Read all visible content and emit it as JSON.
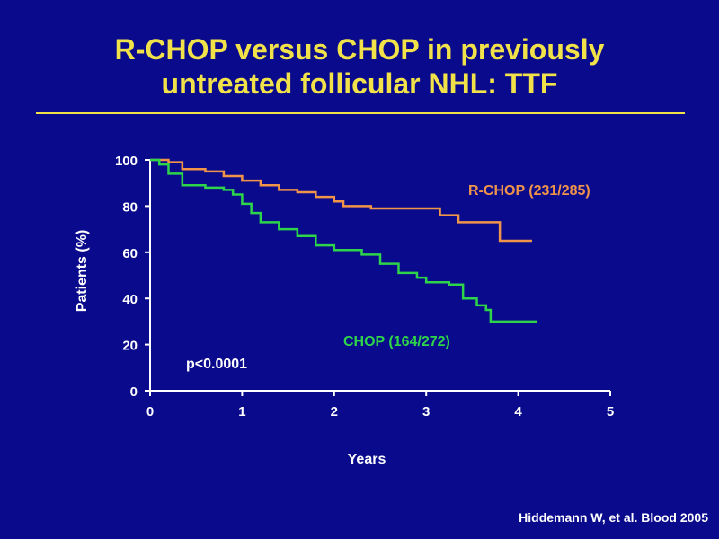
{
  "slide": {
    "title_line1": "R-CHOP versus CHOP in previously",
    "title_line2": "untreated follicular NHL: TTF",
    "citation": "Hiddemann W, et al. Blood 2005",
    "colors": {
      "background": "#0a0a8c",
      "title": "#f2e24a",
      "axis": "#ffffff",
      "rchop": "#f0944a",
      "chop": "#2ed44a"
    }
  },
  "chart_data": {
    "type": "line",
    "step": true,
    "title": "",
    "xlabel": "Years",
    "ylabel": "Patients (%)",
    "xlim": [
      0,
      5
    ],
    "ylim": [
      0,
      100
    ],
    "xticks": [
      "0",
      "1",
      "2",
      "3",
      "4",
      "5"
    ],
    "yticks": [
      "0",
      "20",
      "40",
      "60",
      "80",
      "100"
    ],
    "annotation": "p<0.0001",
    "series": [
      {
        "name": "R-CHOP (231/285)",
        "color": "#f0944a",
        "x": [
          0,
          0.2,
          0.35,
          0.6,
          0.8,
          1.0,
          1.2,
          1.4,
          1.6,
          1.8,
          2.0,
          2.1,
          2.4,
          2.6,
          3.15,
          3.35,
          3.55,
          3.8,
          4.15
        ],
        "y": [
          100,
          99,
          96,
          95,
          93,
          91,
          89,
          87,
          86,
          84,
          82,
          80,
          79,
          79,
          76,
          73,
          73,
          65,
          65
        ]
      },
      {
        "name": "CHOP (164/272)",
        "color": "#2ed44a",
        "x": [
          0,
          0.1,
          0.2,
          0.35,
          0.6,
          0.8,
          0.9,
          1.0,
          1.1,
          1.2,
          1.4,
          1.6,
          1.8,
          2.0,
          2.3,
          2.5,
          2.7,
          2.9,
          3.0,
          3.25,
          3.4,
          3.55,
          3.65,
          3.7,
          4.2
        ],
        "y": [
          100,
          98,
          94,
          89,
          88,
          87,
          85,
          81,
          77,
          73,
          70,
          67,
          63,
          61,
          59,
          55,
          51,
          49,
          47,
          46,
          40,
          37,
          35,
          30,
          30
        ]
      }
    ]
  }
}
